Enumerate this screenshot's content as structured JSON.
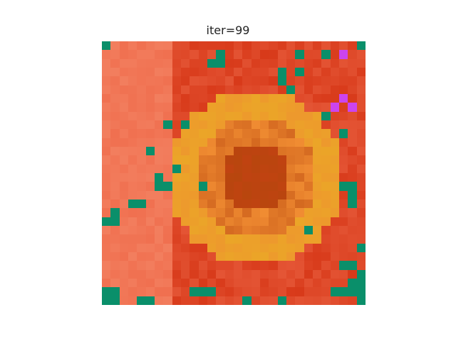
{
  "title": "iter=99",
  "image": {
    "description_palette": {
      "base": "#f07050",
      "red": "#d83a1a",
      "orange": "#f48a2e",
      "amber": "#e79a1c",
      "brown": "#b8470e",
      "salmon": "#f8a080",
      "teal": "#0a8f6a",
      "magenta": "#cc44ee"
    }
  }
}
